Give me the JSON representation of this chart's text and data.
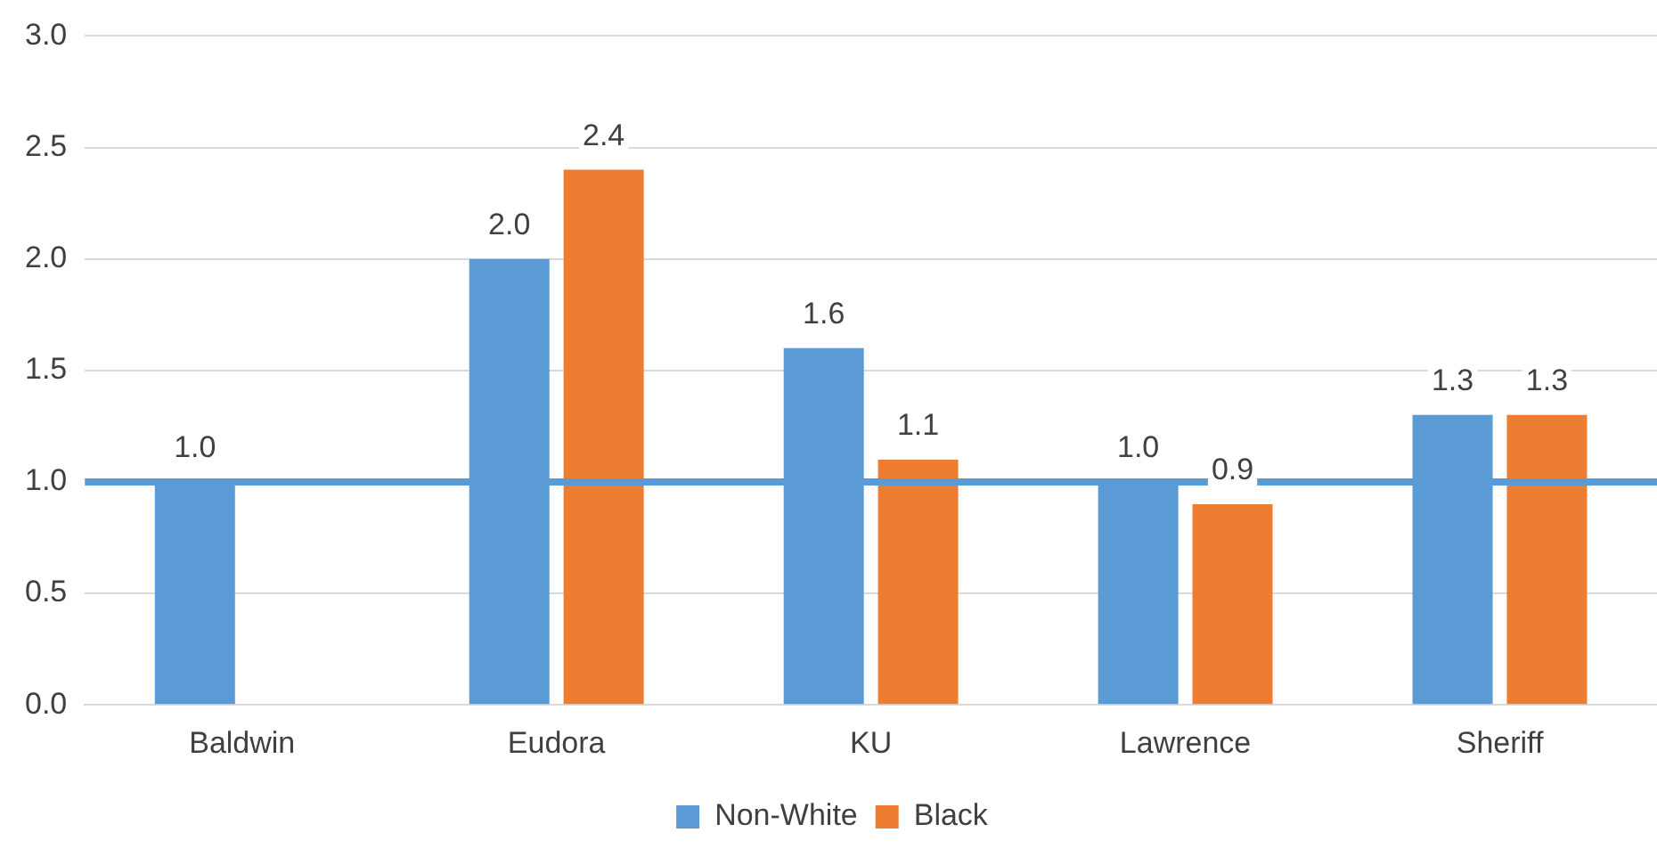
{
  "chart_data": {
    "type": "bar",
    "categories": [
      "Baldwin",
      "Eudora",
      "KU",
      "Lawrence",
      "Sheriff"
    ],
    "series": [
      {
        "name": "Non-White",
        "color": "#5b9bd5",
        "values": [
          1.0,
          2.0,
          1.6,
          1.0,
          1.3
        ],
        "value_labels": [
          "1.0",
          "2.0",
          "1.6",
          "1.0",
          "1.3"
        ]
      },
      {
        "name": "Black",
        "color": "#ed7d31",
        "values": [
          null,
          2.4,
          1.1,
          0.9,
          1.3
        ],
        "value_labels": [
          null,
          "2.4",
          "1.1",
          "0.9",
          "1.3"
        ]
      }
    ],
    "ylim": [
      0,
      3
    ],
    "yticks": [
      {
        "value": 0,
        "label": "0.0"
      },
      {
        "value": 0.5,
        "label": "0.5"
      },
      {
        "value": 1,
        "label": "1.0"
      },
      {
        "value": 1.5,
        "label": "1.5"
      },
      {
        "value": 2,
        "label": "2.0"
      },
      {
        "value": 2.5,
        "label": "2.5"
      },
      {
        "value": 3,
        "label": "3.0"
      }
    ],
    "grid": "y",
    "legend": "bottom",
    "ref_lines": [
      {
        "axis": "y",
        "value": 1,
        "label": null,
        "color": "#5b9bd5"
      }
    ]
  }
}
